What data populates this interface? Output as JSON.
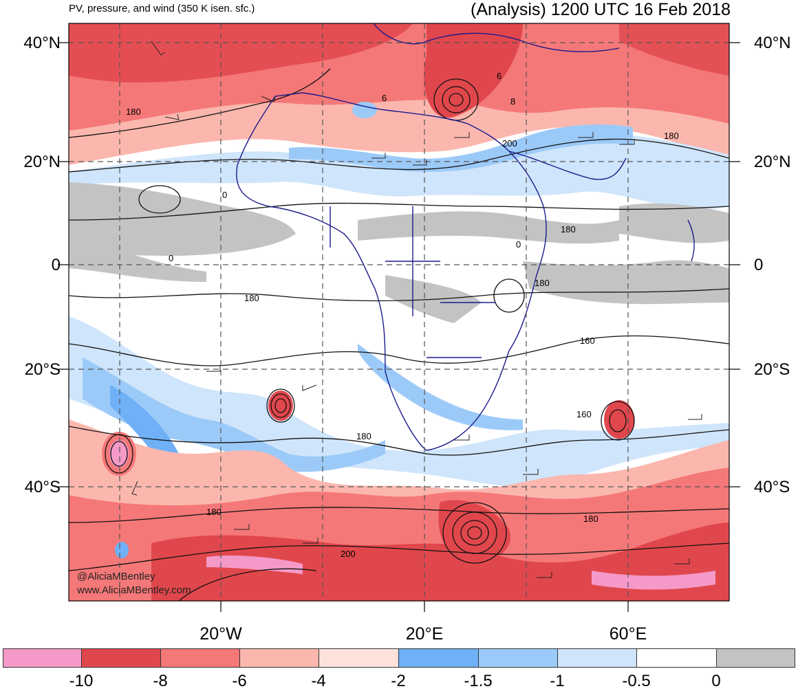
{
  "header": {
    "subtitle": "PV, pressure, and wind (350 K isen. sfc.)",
    "title": "(Analysis) 1200 UTC 16 Feb 2018"
  },
  "latitude_labels": [
    "40°N",
    "20°N",
    "0",
    "20°S",
    "40°S"
  ],
  "longitude_labels": [
    "20°W",
    "20°E",
    "60°E"
  ],
  "contour_labels": [
    "180",
    "6",
    "6",
    "8",
    "200",
    "180",
    "0",
    "0",
    "180",
    "0",
    "180",
    "180",
    "160",
    "160",
    "180",
    "180",
    "180",
    "200"
  ],
  "credit": {
    "handle": "@AliciaMBentley",
    "site": "www.AliciaMBentley.com"
  },
  "colorbar": {
    "labels": [
      "-10",
      "-8",
      "-6",
      "-4",
      "-2",
      "-1.5",
      "-1",
      "-0.5",
      "0"
    ],
    "colors": [
      "#f59ac8",
      "#e0474c",
      "#f57878",
      "#fbb7ae",
      "#fde2dc",
      "#6fb0f7",
      "#9ccaf8",
      "#cfe5fb",
      "#ffffff",
      "#c3c3c3"
    ]
  },
  "colors": {
    "land_border": "#1a1a8c",
    "contour": "#111111",
    "grid": "#555555"
  }
}
